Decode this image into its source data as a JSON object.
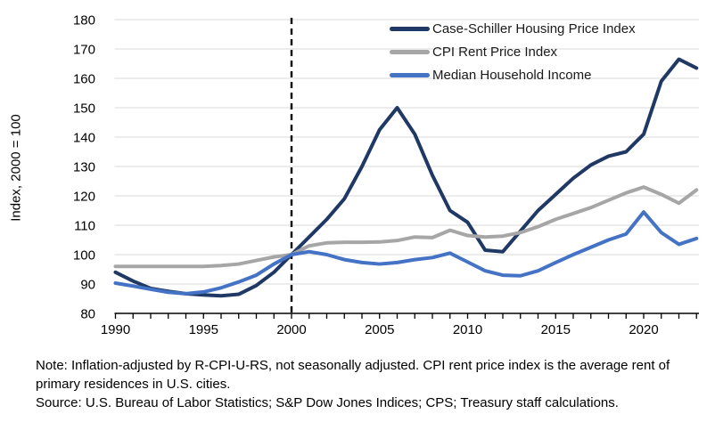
{
  "chart_data": {
    "type": "line",
    "title": "",
    "xlabel": "",
    "ylabel": "Index, 2000 = 100",
    "ylim": [
      80,
      180
    ],
    "ytick_step": 10,
    "yticks": [
      80,
      90,
      100,
      110,
      120,
      130,
      140,
      150,
      160,
      170,
      180
    ],
    "xticks_labeled": [
      1990,
      1995,
      2000,
      2005,
      2010,
      2015,
      2020
    ],
    "x_range": [
      1990,
      2023.3
    ],
    "grid": "horizontal",
    "legend_position": "top-right-inside",
    "reference_line": {
      "x": 2000,
      "style": "dashed",
      "color": "#000000"
    },
    "axis_color": "#000000",
    "gridline_color": "#d9d9d9",
    "x": [
      1990,
      1991,
      1992,
      1993,
      1994,
      1995,
      1996,
      1997,
      1998,
      1999,
      2000,
      2001,
      2002,
      2003,
      2004,
      2005,
      2006,
      2007,
      2008,
      2009,
      2010,
      2011,
      2012,
      2013,
      2014,
      2015,
      2016,
      2017,
      2018,
      2019,
      2020,
      2021,
      2022,
      2023
    ],
    "series": [
      {
        "name": "Case-Schiller Housing Price Index",
        "color": "#1f3864",
        "values": [
          94,
          91,
          88.5,
          87.5,
          86.7,
          86.3,
          86,
          86.5,
          89.5,
          94,
          100,
          106,
          112,
          119,
          130,
          142.5,
          150,
          141,
          127,
          115,
          111,
          101.5,
          101,
          108,
          115,
          120.5,
          126,
          130.5,
          133.5,
          135,
          141,
          159,
          166.5,
          163.5
        ]
      },
      {
        "name": "CPI Rent Price Index",
        "color": "#a6a6a6",
        "values": [
          96,
          96,
          96,
          96,
          96,
          96,
          96.3,
          96.8,
          98,
          99.2,
          100,
          103,
          104,
          104.2,
          104.2,
          104.3,
          104.8,
          106,
          105.8,
          108.3,
          106.5,
          106,
          106.3,
          107.5,
          109.5,
          112,
          114,
          116,
          118.5,
          121,
          123,
          120.5,
          117.5,
          122
        ]
      },
      {
        "name": "Median Household Income",
        "color": "#4472c4",
        "values": [
          90.3,
          89.3,
          88.2,
          87.2,
          86.7,
          87.3,
          88.7,
          90.7,
          93,
          96.8,
          100,
          101,
          100,
          98.3,
          97.3,
          96.8,
          97.3,
          98.3,
          99,
          100.5,
          97.5,
          94.5,
          93,
          92.8,
          94.5,
          97.3,
          100,
          102.5,
          105,
          107,
          114.5,
          107.5,
          103.5,
          105.5
        ]
      }
    ]
  },
  "footnote": {
    "note": "Note: Inflation-adjusted by R-CPI-U-RS, not seasonally adjusted. CPI rent price index is the average rent of primary residences in U.S. cities.",
    "source": "Source: U.S. Bureau of Labor Statistics; S&P Dow Jones Indices; CPS; Treasury staff calculations."
  }
}
